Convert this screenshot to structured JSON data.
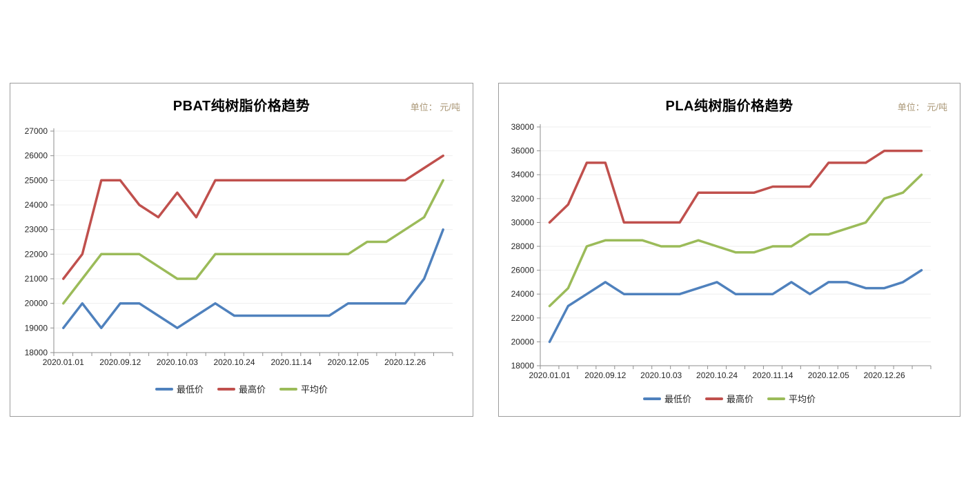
{
  "colors": {
    "series_min": "#4F81BD",
    "series_max": "#C0504D",
    "series_avg": "#9BBB59",
    "axis": "#8e8e8e",
    "grid": "#eeeeee",
    "tick_label": "#262626",
    "unit_label": "#ab9878",
    "panel_border": "#9b9b9b"
  },
  "chart_data": [
    {
      "type": "line",
      "title": "PBAT纯树脂价格趋势",
      "unit_label": "单位： 元/吨",
      "ylim": [
        18000,
        27000
      ],
      "ytick_step": 1000,
      "n_points": 21,
      "x_tick_labels": [
        "2020.01.01",
        "2020.09.12",
        "2020.10.03",
        "2020.10.24",
        "2020.11.14",
        "2020.12.05",
        "2020.12.26"
      ],
      "x_label_indices": [
        0,
        3,
        6,
        9,
        12,
        15,
        18
      ],
      "grid": true,
      "legend_position": "bottom",
      "series": [
        {
          "name": "最低价",
          "color": "#4F81BD",
          "values": [
            19000,
            20000,
            19000,
            20000,
            20000,
            19500,
            19000,
            19500,
            20000,
            19500,
            19500,
            19500,
            19500,
            19500,
            19500,
            20000,
            20000,
            20000,
            20000,
            21000,
            23000
          ]
        },
        {
          "name": "最高价",
          "color": "#C0504D",
          "values": [
            21000,
            22000,
            25000,
            25000,
            24000,
            23500,
            24500,
            23500,
            25000,
            25000,
            25000,
            25000,
            25000,
            25000,
            25000,
            25000,
            25000,
            25000,
            25000,
            25500,
            26000
          ]
        },
        {
          "name": "平均价",
          "color": "#9BBB59",
          "values": [
            20000,
            21000,
            22000,
            22000,
            22000,
            21500,
            21000,
            21000,
            22000,
            22000,
            22000,
            22000,
            22000,
            22000,
            22000,
            22000,
            22500,
            22500,
            23000,
            23500,
            25000
          ]
        }
      ]
    },
    {
      "type": "line",
      "title": "PLA纯树脂价格趋势",
      "unit_label": "单位： 元/吨",
      "ylim": [
        18000,
        38000
      ],
      "ytick_step": 2000,
      "n_points": 21,
      "x_tick_labels": [
        "2020.01.01",
        "2020.09.12",
        "2020.10.03",
        "2020.10.24",
        "2020.11.14",
        "2020.12.05",
        "2020.12.26"
      ],
      "x_label_indices": [
        0,
        3,
        6,
        9,
        12,
        15,
        18
      ],
      "grid": true,
      "legend_position": "bottom",
      "series": [
        {
          "name": "最低价",
          "color": "#4F81BD",
          "values": [
            20000,
            23000,
            24000,
            25000,
            24000,
            24000,
            24000,
            24000,
            24500,
            25000,
            24000,
            24000,
            24000,
            25000,
            24000,
            25000,
            25000,
            24500,
            24500,
            25000,
            26000
          ]
        },
        {
          "name": "最高价",
          "color": "#C0504D",
          "values": [
            30000,
            31500,
            35000,
            35000,
            30000,
            30000,
            30000,
            30000,
            32500,
            32500,
            32500,
            32500,
            33000,
            33000,
            33000,
            35000,
            35000,
            35000,
            36000,
            36000,
            36000
          ]
        },
        {
          "name": "平均价",
          "color": "#9BBB59",
          "values": [
            23000,
            24500,
            28000,
            28500,
            28500,
            28500,
            28000,
            28000,
            28500,
            28000,
            27500,
            27500,
            28000,
            28000,
            29000,
            29000,
            29500,
            30000,
            32000,
            32500,
            34000
          ]
        }
      ]
    }
  ]
}
